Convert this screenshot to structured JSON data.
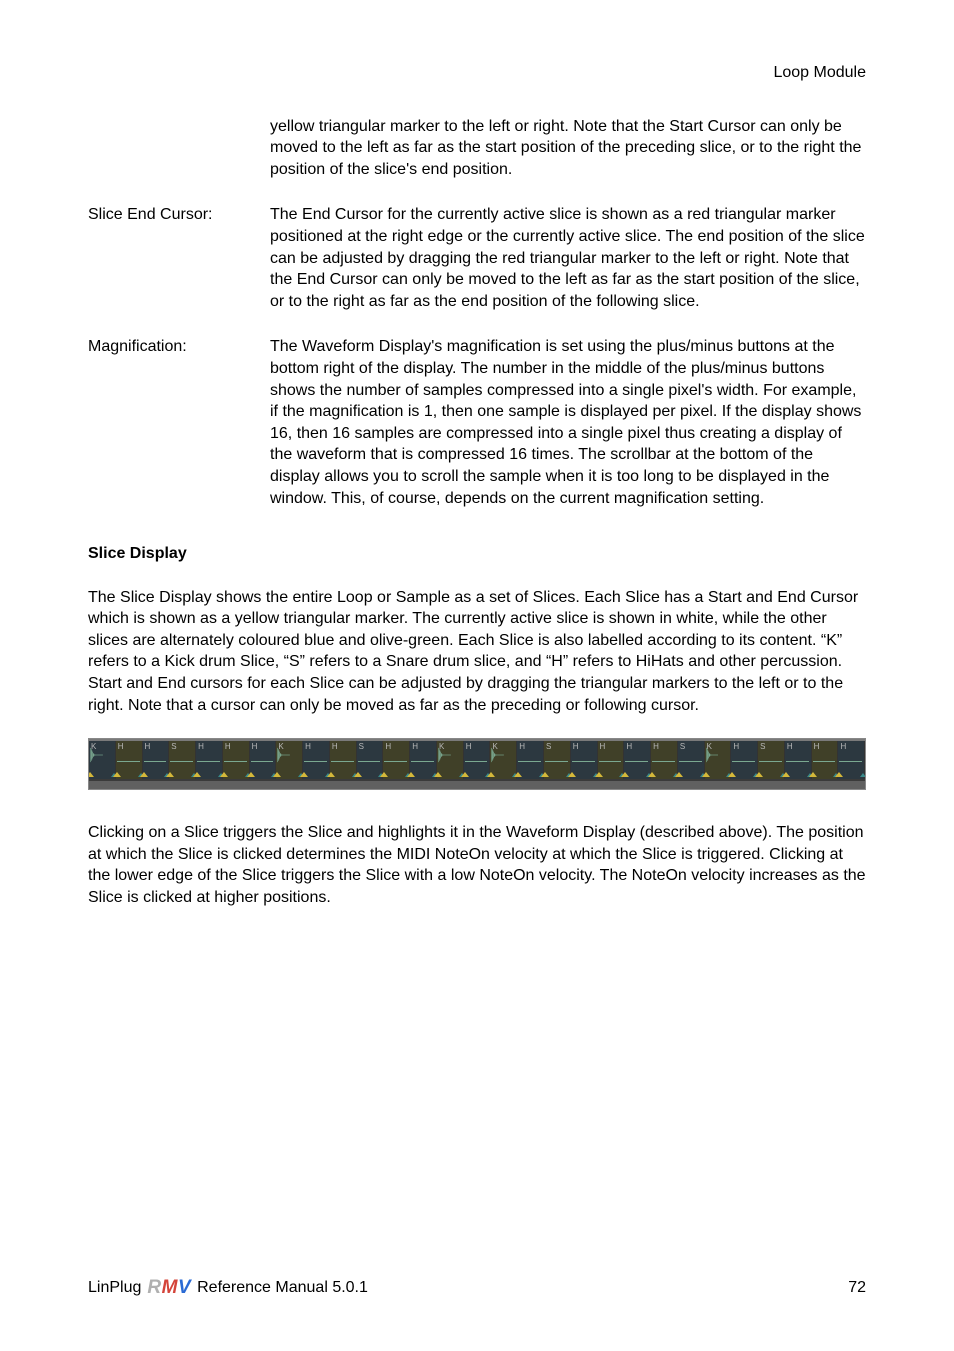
{
  "header": {
    "title": "Loop Module"
  },
  "body": {
    "intro_continuation": "yellow triangular marker to the left or right. Note that the Start Cursor can only be moved to the left as far as the start position of the preceding slice, or to the right the position of the slice's end position.",
    "definitions": [
      {
        "term": "Slice End Cursor:",
        "desc": "The End Cursor for the currently active slice is shown as a red triangular marker positioned at the right edge or the currently active slice. The end position of the slice can be adjusted by dragging the red triangular marker to the left or right. Note that the  End Cursor can only be moved to the left as far as the start position of the slice, or to the right as far as the end position of the following slice."
      },
      {
        "term": "Magnification:",
        "desc": "The Waveform Display's magnification is set using the plus/minus buttons at the bottom right of the display. The number in the middle of the plus/minus buttons shows the number of samples compressed into a single pixel's width. For example, if the magnification is 1, then one sample is displayed per pixel. If the display shows 16, then 16 samples are compressed into a single pixel thus creating a display of the waveform that is compressed 16 times. The scrollbar at the bottom of the display allows you to scroll the sample when it is too long to be displayed in the window. This, of course, depends on the current magnification setting."
      }
    ],
    "section_heading": "Slice Display",
    "para1": "The Slice Display shows the entire Loop or Sample as a set of Slices. Each Slice has a Start and End Cursor which is shown as a yellow triangular marker. The currently active slice is shown in white, while the other slices are alternately coloured blue and olive-green. Each Slice is also labelled according to its content. “K” refers to a Kick drum Slice, “S” refers to a Snare drum slice, and “H” refers to HiHats and other percussion. Start and End cursors for each Slice can be adjusted by dragging the triangular markers to the left or to the right. Note that a cursor can only be moved as far as the preceding or following cursor.",
    "para2": "Clicking on a Slice triggers the Slice and highlights it in the Waveform Display (described above). The position at which the Slice is clicked determines the MIDI NoteOn velocity at which the Slice is triggered. Clicking at the lower edge of the Slice triggers the Slice with a low NoteOn velocity. The NoteOn velocity increases as the Slice is clicked at higher positions."
  },
  "slice_strip": {
    "slices": [
      {
        "label": "K",
        "big": true,
        "alt": "alt1"
      },
      {
        "label": "H",
        "big": false,
        "alt": "alt2"
      },
      {
        "label": "H",
        "big": false,
        "alt": "alt1"
      },
      {
        "label": "S",
        "big": false,
        "alt": "alt2"
      },
      {
        "label": "H",
        "big": false,
        "alt": "alt1"
      },
      {
        "label": "H",
        "big": false,
        "alt": "alt2"
      },
      {
        "label": "H",
        "big": false,
        "alt": "alt1"
      },
      {
        "label": "K",
        "big": true,
        "alt": "alt2"
      },
      {
        "label": "H",
        "big": false,
        "alt": "alt1"
      },
      {
        "label": "H",
        "big": false,
        "alt": "alt2"
      },
      {
        "label": "S",
        "big": false,
        "alt": "alt1"
      },
      {
        "label": "H",
        "big": false,
        "alt": "alt2"
      },
      {
        "label": "H",
        "big": false,
        "alt": "alt1"
      },
      {
        "label": "K",
        "big": true,
        "alt": "alt2"
      },
      {
        "label": "H",
        "big": false,
        "alt": "alt1"
      },
      {
        "label": "K",
        "big": true,
        "alt": "alt2"
      },
      {
        "label": "H",
        "big": false,
        "alt": "alt1"
      },
      {
        "label": "S",
        "big": false,
        "alt": "alt2"
      },
      {
        "label": "H",
        "big": false,
        "alt": "alt1"
      },
      {
        "label": "H",
        "big": false,
        "alt": "alt2"
      },
      {
        "label": "H",
        "big": false,
        "alt": "alt1"
      },
      {
        "label": "H",
        "big": false,
        "alt": "alt2"
      },
      {
        "label": "S",
        "big": false,
        "alt": "alt1"
      },
      {
        "label": "K",
        "big": true,
        "alt": "alt2"
      },
      {
        "label": "H",
        "big": false,
        "alt": "alt1"
      },
      {
        "label": "S",
        "big": false,
        "alt": "alt2"
      },
      {
        "label": "H",
        "big": false,
        "alt": "alt1"
      },
      {
        "label": "H",
        "big": false,
        "alt": "alt2"
      },
      {
        "label": "H",
        "big": false,
        "alt": "alt1"
      }
    ],
    "colors": {
      "alt1_bg": "#2c3840",
      "alt2_bg": "#404028",
      "wave_color": "#7aa890",
      "marker_yellow": "#d4b83a",
      "marker_teal": "#3a8a8a",
      "label_color": "#b8b8b8",
      "strip_bg": "#5a5a5a"
    }
  },
  "footer": {
    "left_prefix": "LinPlug",
    "brand_r": "R",
    "brand_m": "M",
    "brand_v": "V",
    "left_suffix": "Reference Manual 5.0.1",
    "page_number": "72"
  }
}
